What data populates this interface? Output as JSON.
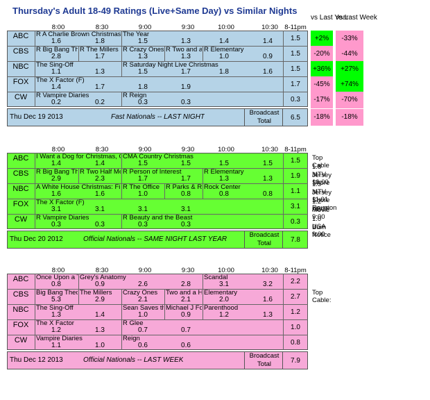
{
  "title": "Thursday's Adult 18-49 Ratings (Live+Same Day) vs Similar Nights",
  "compare_headers": {
    "vs_last_year": "vs Last Year",
    "vs_last_week": "vs Last Week"
  },
  "times": [
    "8:00",
    "8:30",
    "9:00",
    "9:30",
    "10:00",
    "10:30",
    "8-11pm"
  ],
  "colors": {
    "blue": "#b5d3e7",
    "green": "#66ff33",
    "pink": "#f7a9d8",
    "pos_green": "#00ff00",
    "neg_pink": "#ff99cc"
  },
  "blocks": [
    {
      "id": "tonight",
      "color": "#b5d3e7",
      "footer": {
        "date": "Thu Dec 19 2013",
        "label": "Fast Nationals -- LAST NIGHT",
        "bt_label": "Broadcast Total",
        "bt_value": "6.5"
      },
      "rows": [
        {
          "net": "ABC",
          "shows": [
            "R A Charlie Brown Christmas",
            "The Year"
          ],
          "vals": [
            "1.6",
            "1.8",
            "1.5",
            "1.3",
            "1.4",
            "1.4"
          ],
          "total": "1.5",
          "vs_year": "+2%",
          "vs_week": "-33%"
        },
        {
          "net": "CBS",
          "shows": [
            "R Big Bang Theory",
            "R The Millers",
            "R Crazy Ones",
            "R Two and a Half Men",
            "R Elementary"
          ],
          "vals": [
            "2.8",
            "1.7",
            "1.3",
            "1.3",
            "1.0",
            "0.9"
          ],
          "total": "1.5",
          "vs_year": "-20%",
          "vs_week": "-44%"
        },
        {
          "net": "NBC",
          "shows": [
            "The Sing-Off",
            "R Saturday Night Live Christmas"
          ],
          "vals": [
            "1.1",
            "1.3",
            "1.5",
            "1.7",
            "1.8",
            "1.6"
          ],
          "total": "1.5",
          "vs_year": "+36%",
          "vs_week": "+27%"
        },
        {
          "net": "FOX",
          "shows": [
            "The X Factor (F)"
          ],
          "vals": [
            "1.4",
            "1.7",
            "1.8",
            "1.9",
            "",
            ""
          ],
          "total": "1.7",
          "vs_year": "-45%",
          "vs_week": "+74%"
        },
        {
          "net": "CW",
          "shows": [
            "R Vampire Diaries",
            "R Reign"
          ],
          "vals": [
            "0.2",
            "0.2",
            "0.3",
            "0.3",
            "",
            ""
          ],
          "total": "0.3",
          "vs_year": "-17%",
          "vs_week": "-70%"
        }
      ],
      "summary": {
        "vs_year": "-18%",
        "vs_week": "-18%"
      }
    },
    {
      "id": "last-year",
      "color": "#66ff33",
      "footer": {
        "date": "Thu Dec 20 2012",
        "label": "Official Nationals -- SAME NIGHT LAST YEAR",
        "bt_label": "Broadcast Total",
        "bt_value": "7.8"
      },
      "rows": [
        {
          "net": "ABC",
          "shows": [
            "I Want a Dog for Christmas, Charlie Brown",
            "CMA Country Christmas"
          ],
          "vals": [
            "1.4",
            "1.4",
            "1.5",
            "1.5",
            "1.5",
            "1.5"
          ],
          "total": "1.5"
        },
        {
          "net": "CBS",
          "shows": [
            "R Big Bang Theory",
            "R Two Half Men",
            "R Person of Interest",
            "R Elementary"
          ],
          "vals": [
            "2.9",
            "2.3",
            "1.7",
            "1.7",
            "1.3",
            "1.3"
          ],
          "total": "1.9"
        },
        {
          "net": "NBC",
          "shows": [
            "A White House Christmas: First Lady",
            "R The Office",
            "R Parks & Recreation",
            "Rock Center"
          ],
          "vals": [
            "1.6",
            "1.6",
            "1.0",
            "0.8",
            "0.8",
            "0.8"
          ],
          "total": "1.1"
        },
        {
          "net": "FOX",
          "shows": [
            "The X Factor (F)"
          ],
          "vals": [
            "3.1",
            "3.1",
            "3.1",
            "3.1",
            "",
            ""
          ],
          "total": "3.1"
        },
        {
          "net": "CW",
          "shows": [
            "R Vampire Diaries",
            "R Beauty and the Beast"
          ],
          "vals": [
            "0.3",
            "0.3",
            "0.3",
            "0.3",
            "",
            ""
          ],
          "total": "0.3"
        }
      ],
      "side": [
        "Top Cable",
        "1.8 MTV 10:00",
        "Jersey Shore",
        "1.5 MTV 11:01",
        "Jersey Shore Reunion",
        "1.2 ABCF 9:00",
        "Movie",
        "1.0 USA 9:00",
        "Burn Notice"
      ]
    },
    {
      "id": "last-week",
      "color": "#f7a9d8",
      "footer": {
        "date": "Thu Dec 12 2013",
        "label": "Official Nationals -- LAST WEEK",
        "bt_label": "Broadcast Total",
        "bt_value": "7.9"
      },
      "rows": [
        {
          "net": "ABC",
          "shows": [
            "Once Upon a Time in Wonderland",
            "Grey's Anatomy",
            "Scandal"
          ],
          "vals": [
            "0.8",
            "0.9",
            "2.6",
            "2.8",
            "3.1",
            "3.2"
          ],
          "total": "2.2"
        },
        {
          "net": "CBS",
          "shows": [
            "Big Bang Theory",
            "The Millers",
            "Crazy Ones",
            "Two and a Half Men",
            "Elementary"
          ],
          "vals": [
            "5.3",
            "2.9",
            "2.1",
            "2.1",
            "2.0",
            "1.6"
          ],
          "total": "2.7"
        },
        {
          "net": "NBC",
          "shows": [
            "The Sing-Off",
            "Sean Saves the World",
            "Michael J Fox Show",
            "Parenthood"
          ],
          "vals": [
            "1.3",
            "1.4",
            "1.0",
            "0.9",
            "1.2",
            "1.3"
          ],
          "total": "1.2"
        },
        {
          "net": "FOX",
          "shows": [
            "The X Factor",
            "R Glee"
          ],
          "vals": [
            "1.2",
            "1.3",
            "0.7",
            "0.7",
            "",
            ""
          ],
          "total": "1.0"
        },
        {
          "net": "CW",
          "shows": [
            "Vampire Diaries",
            "Reign"
          ],
          "vals": [
            "1.1",
            "1.0",
            "0.6",
            "0.6",
            "",
            ""
          ],
          "total": "0.8"
        }
      ],
      "side": [
        "Top Cable:"
      ]
    }
  ]
}
